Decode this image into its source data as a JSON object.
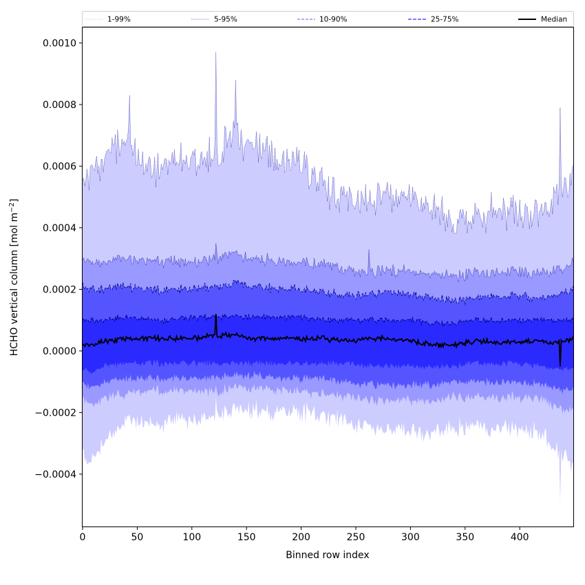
{
  "chart_data": {
    "type": "area",
    "xlabel": "Binned row index",
    "ylabel": "HCHO vertical column [mol m",
    "ylabel_sup": "−2",
    "ylabel_close": "]",
    "xlim": [
      0,
      449
    ],
    "ylim": [
      -0.00057,
      0.00105
    ],
    "xticks": [
      0,
      50,
      100,
      150,
      200,
      250,
      300,
      350,
      400
    ],
    "xtick_labels": [
      "0",
      "50",
      "100",
      "150",
      "200",
      "250",
      "300",
      "350",
      "400"
    ],
    "yticks": [
      -0.0004,
      -0.0002,
      0.0,
      0.0002,
      0.0004,
      0.0006,
      0.0008,
      0.001
    ],
    "ytick_labels": [
      "−0.0004",
      "−0.0002",
      "0.0000",
      "0.0002",
      "0.0004",
      "0.0006",
      "0.0008",
      "0.0010"
    ],
    "legend_position": "top, spanning plot width",
    "colors": {
      "band_1_99": "#ccccff",
      "band_5_95": "#9999ff",
      "band_10_90": "#5555ff",
      "band_25_75": "#2a2aff",
      "percentile_line": "#00008b",
      "median": "#000000"
    },
    "legend": [
      {
        "label": "1-99%",
        "style": "dotted-light"
      },
      {
        "label": "5-95%",
        "style": "dotted"
      },
      {
        "label": "10-90%",
        "style": "dashed-light"
      },
      {
        "label": "25-75%",
        "style": "dashed"
      },
      {
        "label": "Median",
        "style": "solid"
      }
    ],
    "series_profile": {
      "x": [
        0,
        10,
        20,
        40,
        60,
        80,
        100,
        120,
        140,
        160,
        180,
        200,
        220,
        240,
        260,
        280,
        300,
        320,
        340,
        360,
        380,
        400,
        420,
        440,
        449
      ],
      "p99": [
        0.00056,
        0.00057,
        0.00063,
        0.00069,
        0.00058,
        0.0006,
        0.00062,
        0.00065,
        0.0007,
        0.00066,
        0.00062,
        0.0006,
        0.00054,
        0.00049,
        0.00048,
        0.0005,
        0.00049,
        0.00047,
        0.00041,
        0.00043,
        0.00046,
        0.00045,
        0.00045,
        0.00052,
        0.00057
      ],
      "p95": [
        0.00029,
        0.00029,
        0.00029,
        0.0003,
        0.00029,
        0.00029,
        0.00029,
        0.0003,
        0.00031,
        0.0003,
        0.00029,
        0.00029,
        0.00028,
        0.00026,
        0.00025,
        0.00026,
        0.00026,
        0.00025,
        0.00024,
        0.00025,
        0.00026,
        0.00026,
        0.00025,
        0.00027,
        0.00029
      ],
      "p90": [
        0.00021,
        0.0002,
        0.0002,
        0.00021,
        0.0002,
        0.0002,
        0.0002,
        0.00021,
        0.00022,
        0.00021,
        0.0002,
        0.0002,
        0.00019,
        0.00018,
        0.00018,
        0.00019,
        0.00018,
        0.00017,
        0.00016,
        0.00017,
        0.00018,
        0.00018,
        0.00017,
        0.00019,
        0.0002
      ],
      "p75": [
        0.0001,
        0.0001,
        0.0001,
        0.00011,
        0.0001,
        0.0001,
        0.00011,
        0.00011,
        0.00011,
        0.00011,
        0.00011,
        0.00011,
        0.0001,
        0.0001,
        0.0001,
        0.0001,
        0.0001,
        9e-05,
        9e-05,
        0.0001,
        0.0001,
        0.0001,
        0.0001,
        0.0001,
        0.0001
      ],
      "median": [
        2e-05,
        2e-05,
        3e-05,
        4e-05,
        4e-05,
        4e-05,
        4e-05,
        5e-05,
        5e-05,
        4e-05,
        4e-05,
        4e-05,
        4e-05,
        3e-05,
        4e-05,
        4e-05,
        3e-05,
        2e-05,
        2e-05,
        3e-05,
        3e-05,
        3e-05,
        3e-05,
        3e-05,
        4e-05
      ],
      "p25": [
        -6e-05,
        -7e-05,
        -5e-05,
        -4e-05,
        -4e-05,
        -4e-05,
        -4e-05,
        -4e-05,
        -4e-05,
        -4e-05,
        -4e-05,
        -4e-05,
        -4e-05,
        -4e-05,
        -5e-05,
        -5e-05,
        -5e-05,
        -5e-05,
        -5e-05,
        -4e-05,
        -4e-05,
        -4e-05,
        -5e-05,
        -6e-05,
        -6e-05
      ],
      "p10": [
        -0.00011,
        -0.00012,
        -0.0001,
        -9e-05,
        -9e-05,
        -9e-05,
        -9e-05,
        -9e-05,
        -8e-05,
        -8e-05,
        -9e-05,
        -9e-05,
        -9e-05,
        -0.0001,
        -0.00011,
        -0.00011,
        -0.00011,
        -0.00011,
        -0.0001,
        -0.0001,
        -0.0001,
        -0.0001,
        -0.00011,
        -0.00013,
        -0.00013
      ],
      "p5": [
        -0.00016,
        -0.00018,
        -0.00015,
        -0.00014,
        -0.00013,
        -0.00013,
        -0.00013,
        -0.00013,
        -0.00012,
        -0.00012,
        -0.00013,
        -0.00013,
        -0.00014,
        -0.00015,
        -0.00016,
        -0.00016,
        -0.00016,
        -0.00016,
        -0.00015,
        -0.00015,
        -0.00015,
        -0.00015,
        -0.00016,
        -0.00019,
        -0.00019
      ],
      "p1": [
        -0.00034,
        -0.00036,
        -0.0003,
        -0.00022,
        -0.00024,
        -0.00023,
        -0.00022,
        -0.00021,
        -0.00019,
        -0.00019,
        -0.0002,
        -0.0002,
        -0.00021,
        -0.00023,
        -0.00025,
        -0.00026,
        -0.00026,
        -0.00027,
        -0.00025,
        -0.00025,
        -0.00025,
        -0.00025,
        -0.00027,
        -0.00034,
        -0.00038
      ]
    },
    "spikes": [
      {
        "x": 43,
        "p99": 0.00083
      },
      {
        "x": 122,
        "p99": 0.00097,
        "p95": 0.00035,
        "median": 0.00012,
        "p1": -0.00015
      },
      {
        "x": 140,
        "p99": 0.00088
      },
      {
        "x": 262,
        "p95": 0.00033,
        "p1": -0.00024
      },
      {
        "x": 437,
        "p99": 0.00079,
        "median": -5e-05,
        "p1": -0.00049
      }
    ]
  }
}
